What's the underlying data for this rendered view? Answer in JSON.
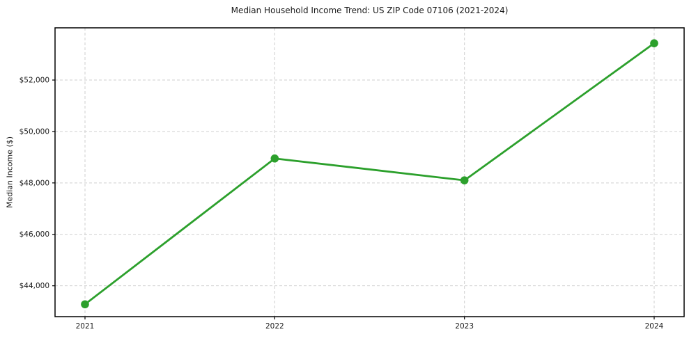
{
  "figure": {
    "background": "#ffffff"
  },
  "chart_data": {
    "type": "line",
    "title": "Median Household Income Trend: US ZIP Code 07106 (2021-2024)",
    "xlabel": "",
    "ylabel": "Median Income ($)",
    "categories": [
      "2021",
      "2022",
      "2023",
      "2024"
    ],
    "series": [
      {
        "name": "Median Household Income",
        "values": [
          43280,
          48950,
          48100,
          53430
        ],
        "color": "#2ca02c",
        "marker": "circle"
      }
    ],
    "y_tick_values": [
      44000,
      46000,
      48000,
      50000,
      52000
    ],
    "y_tick_labels": [
      "$44,000",
      "$46,000",
      "$48,000",
      "$50,000",
      "$52,000"
    ],
    "ylim": [
      42800,
      54030
    ],
    "grid": "both-dashed",
    "grid_color": "#cfcfcf",
    "spine_color": "#000000",
    "legend_position": "none"
  }
}
